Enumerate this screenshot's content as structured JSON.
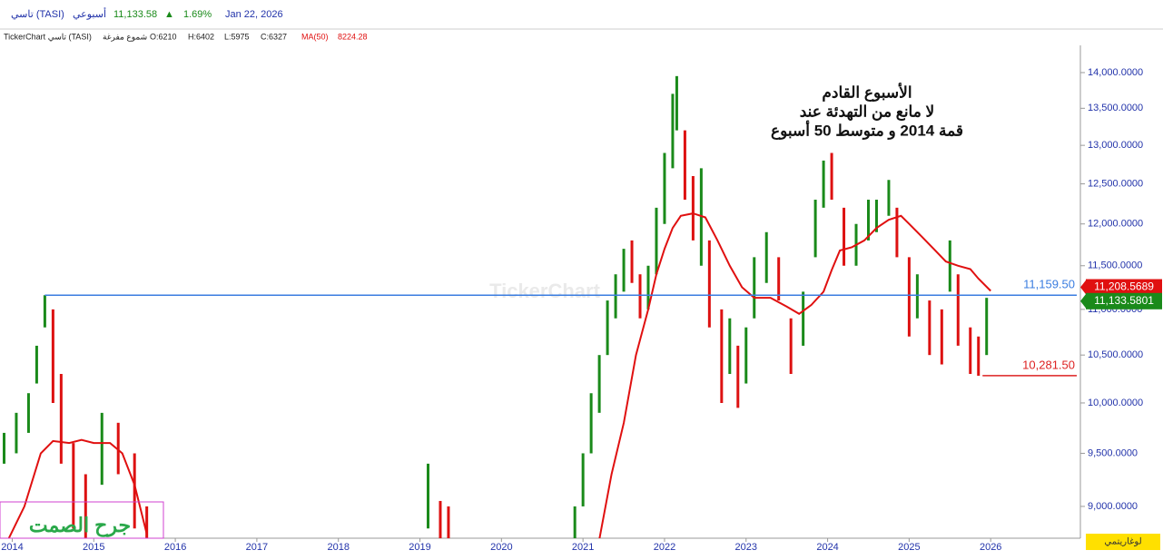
{
  "header": {
    "symbol": "تاسي (TASI)",
    "period": "أسبوعي",
    "price": "11,133.58",
    "arrow": "▲",
    "change": "1.69%",
    "date": "Jan 22, 2026"
  },
  "info": {
    "source": "TickerChart تاسي (TASI)",
    "style": "شموع مفرغة",
    "open": "O:6210",
    "high": "H:6402",
    "low": "L:5975",
    "close": "C:6327",
    "ma_name": "MA(50)",
    "ma_value": "8224.28"
  },
  "watermark": "TickerChart",
  "signature": "جرح الصمت",
  "scale_button": "لوغاريتمي",
  "chart_data": {
    "type": "ohlc",
    "log": true,
    "annotation": [
      "الأسبوع القادم",
      "لا مانع من التهدئة عند",
      "قمة 2014 و متوسط 50 أسبوع"
    ],
    "xlim": [
      2013.85,
      2027.1
    ],
    "xticks": [
      2014,
      2015,
      2016,
      2017,
      2018,
      2019,
      2020,
      2021,
      2022,
      2023,
      2024,
      2025,
      2026
    ],
    "ylim": [
      8713,
      14527
    ],
    "yticks": [
      {
        "value": 9000,
        "label": "9,000.0000"
      },
      {
        "value": 9500,
        "label": "9,500.0000"
      },
      {
        "value": 10000,
        "label": "10,000.0000"
      },
      {
        "value": 10500,
        "label": "10,500.0000"
      },
      {
        "value": 11000,
        "label": "11,000.0000"
      },
      {
        "value": 11500,
        "label": "11,500.0000"
      },
      {
        "value": 12000,
        "label": "12,000.0000"
      },
      {
        "value": 12500,
        "label": "12,500.0000"
      },
      {
        "value": 13000,
        "label": "13,000.0000"
      },
      {
        "value": 13500,
        "label": "13,500.0000"
      },
      {
        "value": 14000,
        "label": "14,000.0000"
      }
    ],
    "up_color": "#1a8a1a",
    "down_color": "#dd1111",
    "bars": {
      "x": [
        2013.9,
        2014.05,
        2014.2,
        2014.3,
        2014.4,
        2014.5,
        2014.6,
        2014.75,
        2014.9,
        2015.1,
        2015.3,
        2015.5,
        2015.65,
        2019.1,
        2019.25,
        2019.35,
        2020.9,
        2021.0,
        2021.1,
        2021.2,
        2021.3,
        2021.4,
        2021.5,
        2021.6,
        2021.7,
        2021.8,
        2021.9,
        2022.0,
        2022.1,
        2022.15,
        2022.25,
        2022.35,
        2022.45,
        2022.55,
        2022.7,
        2022.8,
        2022.9,
        2023.0,
        2023.1,
        2023.25,
        2023.4,
        2023.55,
        2023.7,
        2023.85,
        2023.95,
        2024.05,
        2024.2,
        2024.35,
        2024.5,
        2024.6,
        2024.75,
        2024.85,
        2025.0,
        2025.1,
        2025.25,
        2025.4,
        2025.5,
        2025.6,
        2025.75,
        2025.85,
        2025.95
      ],
      "low": [
        9400,
        9500,
        9700,
        10200,
        10800,
        10000,
        9400,
        8800,
        8500,
        9200,
        9300,
        8800,
        8500,
        8800,
        8700,
        8600,
        8700,
        9000,
        9500,
        9900,
        10500,
        10900,
        11200,
        11300,
        10900,
        11000,
        11400,
        12000,
        12700,
        13200,
        12300,
        11800,
        11500,
        10800,
        10000,
        10300,
        9950,
        10200,
        10900,
        11300,
        11100,
        10300,
        10600,
        11600,
        12200,
        12300,
        11500,
        11500,
        11800,
        11900,
        12100,
        11600,
        10700,
        10900,
        10500,
        10400,
        11200,
        10600,
        10300,
        10281,
        10500
      ],
      "high": [
        9700,
        9900,
        10100,
        10600,
        11160,
        11000,
        10300,
        9600,
        9300,
        9900,
        9800,
        9500,
        9000,
        9400,
        9050,
        9000,
        9000,
        9500,
        10100,
        10500,
        11100,
        11400,
        11700,
        11800,
        11400,
        11500,
        12200,
        12900,
        13700,
        13950,
        13200,
        12600,
        12700,
        11800,
        11000,
        10900,
        10600,
        10800,
        11600,
        11900,
        11600,
        10900,
        11200,
        12300,
        12800,
        12900,
        12200,
        12000,
        12300,
        12300,
        12550,
        12200,
        11600,
        11400,
        11100,
        11000,
        11800,
        11400,
        10800,
        10700,
        11130
      ],
      "up": [
        true,
        true,
        true,
        true,
        true,
        false,
        false,
        false,
        false,
        true,
        false,
        false,
        false,
        true,
        false,
        false,
        true,
        true,
        true,
        true,
        true,
        true,
        true,
        false,
        false,
        true,
        true,
        true,
        true,
        true,
        false,
        false,
        true,
        false,
        false,
        true,
        false,
        true,
        true,
        true,
        false,
        false,
        true,
        true,
        true,
        false,
        false,
        true,
        true,
        true,
        true,
        false,
        false,
        true,
        false,
        false,
        true,
        false,
        false,
        false,
        true
      ]
    },
    "ma": {
      "name": "MA(50)",
      "color": "#e01010",
      "x": [
        2013.95,
        2014.15,
        2014.35,
        2014.5,
        2014.7,
        2014.85,
        2015.0,
        2015.2,
        2015.35,
        2015.5,
        2015.65,
        2021.2,
        2021.2,
        2021.35,
        2021.5,
        2021.65,
        2021.8,
        2021.9,
        2022.0,
        2022.1,
        2022.2,
        2022.35,
        2022.5,
        2022.65,
        2022.8,
        2022.95,
        2023.1,
        2023.3,
        2023.5,
        2023.65,
        2023.8,
        2023.95,
        2024.05,
        2024.15,
        2024.3,
        2024.45,
        2024.6,
        2024.75,
        2024.9,
        2025.0,
        2025.15,
        2025.3,
        2025.45,
        2025.6,
        2025.75,
        2025.85,
        2026.0
      ],
      "values": [
        8700,
        9000,
        9500,
        9620,
        9600,
        9630,
        9600,
        9600,
        9500,
        9200,
        8750,
        null,
        8700,
        9300,
        9800,
        10500,
        11000,
        11400,
        11700,
        11950,
        12100,
        12130,
        12080,
        11800,
        11500,
        11250,
        11130,
        11130,
        11030,
        10950,
        11050,
        11200,
        11450,
        11680,
        11720,
        11800,
        11950,
        12050,
        12100,
        12000,
        11850,
        11700,
        11550,
        11500,
        11460,
        11350,
        11209
      ]
    },
    "levels": [
      {
        "value": 11159.5,
        "label": "11,159.50",
        "color": "#3a7de0",
        "from": 2014.4
      },
      {
        "value": 10281.5,
        "label": "10,281.50",
        "color": "#dd2222",
        "from": 2025.9
      }
    ],
    "price_tags": [
      {
        "value": 11208.5689,
        "label": "11,208.5689",
        "color": "#e01010"
      },
      {
        "value": 11133.5801,
        "label": "11,133.5801",
        "color": "#1a8a1a"
      }
    ]
  }
}
